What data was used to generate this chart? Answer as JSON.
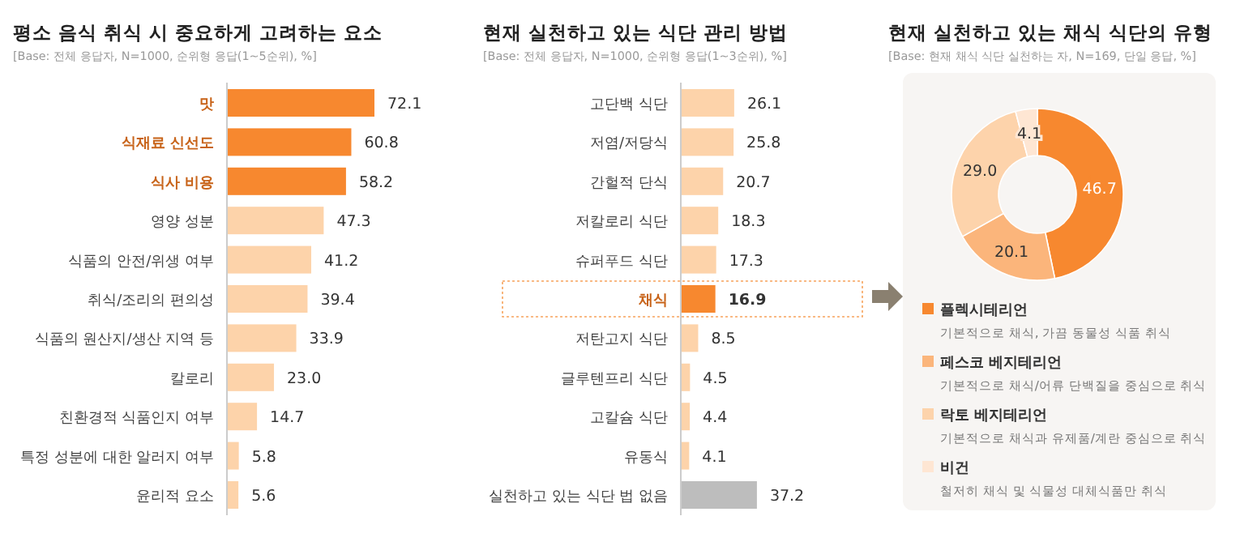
{
  "chart_data": [
    {
      "type": "bar",
      "orientation": "horizontal",
      "title": "평소 음식 취식 시 중요하게 고려하는 요소",
      "subtitle": "[Base: 전체 응답자, N=1000, 순위형 응답(1~5순위), %]",
      "categories": [
        "맛",
        "식재료 신선도",
        "식사 비용",
        "영양 성분",
        "식품의 안전/위생 여부",
        "취식/조리의 편의성",
        "식품의 원산지/생산 지역 등",
        "칼로리",
        "친환경적 식품인지 여부",
        "특정 성분에 대한 알러지 여부",
        "윤리적 요소"
      ],
      "values": [
        72.1,
        60.8,
        58.2,
        47.3,
        41.2,
        39.4,
        33.9,
        23.0,
        14.7,
        5.8,
        5.6
      ],
      "value_labels": [
        "72.1",
        "60.8",
        "58.2",
        "47.3",
        "41.2",
        "39.4",
        "33.9",
        "23.0",
        "14.7",
        "5.8",
        "5.6"
      ],
      "colors": [
        "#f7882f",
        "#f7882f",
        "#f7882f",
        "#fdd3aa",
        "#fdd3aa",
        "#fdd3aa",
        "#fdd3aa",
        "#fdd3aa",
        "#fdd3aa",
        "#fdd3aa",
        "#fdd3aa"
      ]
    },
    {
      "type": "bar",
      "orientation": "horizontal",
      "title": "현재 실천하고 있는 식단 관리 방법",
      "subtitle": "[Base: 전체 응답자, N=1000, 순위형 응답(1~3순위), %]",
      "categories": [
        "고단백 식단",
        "저염/저당식",
        "간헐적 단식",
        "저칼로리 식단",
        "슈퍼푸드 식단",
        "채식",
        "저탄고지 식단",
        "글루텐프리 식단",
        "고칼슘 식단",
        "유동식",
        "실천하고 있는 식단 법 없음"
      ],
      "values": [
        26.1,
        25.8,
        20.7,
        18.3,
        17.3,
        16.9,
        8.5,
        4.5,
        4.4,
        4.1,
        37.2
      ],
      "data_labels": true,
      "colors": [
        "#fdd3aa",
        "#fdd3aa",
        "#fdd3aa",
        "#fdd3aa",
        "#fdd3aa",
        "#f7882f",
        "#fdd3aa",
        "#fdd3aa",
        "#fdd3aa",
        "#fdd3aa",
        "#bdbdbd"
      ]
    },
    {
      "type": "donut",
      "title": "현재 실천하고 있는 채식 식단의 유형",
      "subtitle": "[Base: 현재 채식 식단 실천하는 자, N=169, 단일 응답, %]",
      "categories": [
        "플렉시테리언",
        "페스코 베지테리언",
        "락토 베지테리언",
        "비건"
      ],
      "values": [
        46.7,
        20.1,
        29.0,
        4.1
      ],
      "colors": [
        "#f7882f",
        "#fbb57b",
        "#fdd3ab",
        "#fee6d3"
      ],
      "value_labels": [
        "46.7",
        "20.1",
        "29.0",
        "4.1"
      ],
      "legend": "bottom",
      "annotations": [
        "기본적으로 채식, 가끔 동물성 식품 취식",
        "기본적으로 채식/어류 단백질을 중심으로 취식",
        "기본적으로 채식과 유제품/계란 중심으로 취식",
        "철저히 채식 및 식물성 대체식품만 취식"
      ]
    }
  ]
}
